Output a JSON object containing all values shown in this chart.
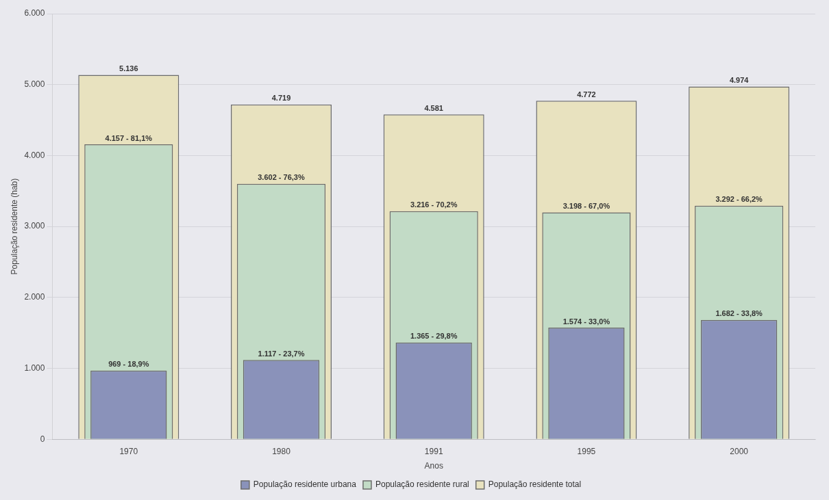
{
  "chart_data": {
    "type": "bar",
    "xlabel": "Anos",
    "ylabel": "População residente (hab)",
    "categories": [
      "1970",
      "1980",
      "1991",
      "1995",
      "2000"
    ],
    "series": [
      {
        "name": "População residente total",
        "color": "#e8e2bf",
        "values": [
          5136,
          4719,
          4581,
          4772,
          4974
        ],
        "value_labels": [
          "5.136",
          "4.719",
          "4.581",
          "4.772",
          "4.974"
        ]
      },
      {
        "name": "População residente rural",
        "color": "#c2dbc6",
        "values": [
          4157,
          3602,
          3216,
          3198,
          3292
        ],
        "value_labels": [
          "4.157 - 81,1%",
          "3.602 - 76,3%",
          "3.216 - 70,2%",
          "3.198 - 67,0%",
          "3.292 - 66,2%"
        ]
      },
      {
        "name": "População residente urbana",
        "color": "#8a92ba",
        "values": [
          969,
          1117,
          1365,
          1574,
          1682
        ],
        "value_labels": [
          "969 - 18,9%",
          "1.117 - 23,7%",
          "1.365 - 29,8%",
          "1.574 - 33,0%",
          "1.682 - 33,8%"
        ]
      }
    ],
    "ylim": [
      0,
      6000
    ],
    "yticks": [
      {
        "value": 0,
        "label": "0"
      },
      {
        "value": 1000,
        "label": "1.000"
      },
      {
        "value": 2000,
        "label": "2.000"
      },
      {
        "value": 3000,
        "label": "3.000"
      },
      {
        "value": 4000,
        "label": "4.000"
      },
      {
        "value": 5000,
        "label": "5.000"
      },
      {
        "value": 6000,
        "label": "6.000"
      }
    ],
    "grid": "y",
    "legend": "bottom"
  }
}
